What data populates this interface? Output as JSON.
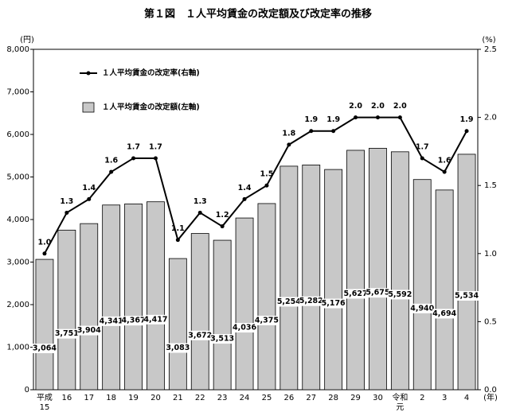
{
  "chart_data": {
    "type": "combo",
    "title": "第１図　１人平均賃金の改定額及び改定率の推移",
    "ylabel": "(円)",
    "y2label": "(%)",
    "xlabel": "(年)",
    "categories": [
      "平成\n15",
      "16",
      "17",
      "18",
      "19",
      "20",
      "21",
      "22",
      "23",
      "24",
      "25",
      "26",
      "27",
      "28",
      "29",
      "30",
      "令和\n元",
      "2",
      "3",
      "4"
    ],
    "series": [
      {
        "name": "１人平均賃金の改定率(右軸)",
        "type": "line",
        "axis": "y2",
        "color": "#000000",
        "values": [
          1.0,
          1.3,
          1.4,
          1.6,
          1.7,
          1.7,
          1.1,
          1.3,
          1.2,
          1.4,
          1.5,
          1.8,
          1.9,
          1.9,
          2.0,
          2.0,
          2.0,
          1.7,
          1.6,
          1.9
        ],
        "value_labels": [
          "1.0",
          "1.3",
          "1.4",
          "1.6",
          "1.7",
          "1.7",
          "1.1",
          "1.3",
          "1.2",
          "1.4",
          "1.5",
          "1.8",
          "1.9",
          "1.9",
          "2.0",
          "2.0",
          "2.0",
          "1.7",
          "1.6",
          "1.9"
        ]
      },
      {
        "name": "１人平均賃金の改定額(左軸)",
        "type": "bar",
        "color": "#c8c8c8",
        "values": [
          3064,
          3751,
          3904,
          4341,
          4367,
          4417,
          3083,
          3672,
          3513,
          4036,
          4375,
          5254,
          5282,
          5176,
          5627,
          5675,
          5592,
          4940,
          4694,
          5534
        ],
        "value_labels": [
          "3,064",
          "3,751",
          "3,904",
          "4,341",
          "4,367",
          "4,417",
          "3,083",
          "3,672",
          "3,513",
          "4,036",
          "4,375",
          "5,254",
          "5,282",
          "5,176",
          "5,627",
          "5,675",
          "5,592",
          "4,940",
          "4,694",
          "5,534"
        ]
      }
    ],
    "ylim": [
      0,
      8000
    ],
    "yticks": [
      0,
      {
        "value": 1000,
        "label": "1,000"
      },
      {
        "value": 2000,
        "label": "2,000"
      },
      {
        "value": 3000,
        "label": "3,000"
      },
      {
        "value": 4000,
        "label": "4,000"
      },
      {
        "value": 5000,
        "label": "5,000"
      },
      {
        "value": 6000,
        "label": "6,000"
      },
      {
        "value": 7000,
        "label": "7,000"
      },
      {
        "value": 8000,
        "label": "8,000"
      }
    ],
    "y2lim": [
      0,
      2.5
    ],
    "y2ticks": [
      {
        "value": 0,
        "label": "0.0"
      },
      0.5,
      {
        "value": 1,
        "label": "1.0"
      },
      1.5,
      {
        "value": 2,
        "label": "2.0"
      },
      2.5
    ],
    "grid": false
  }
}
